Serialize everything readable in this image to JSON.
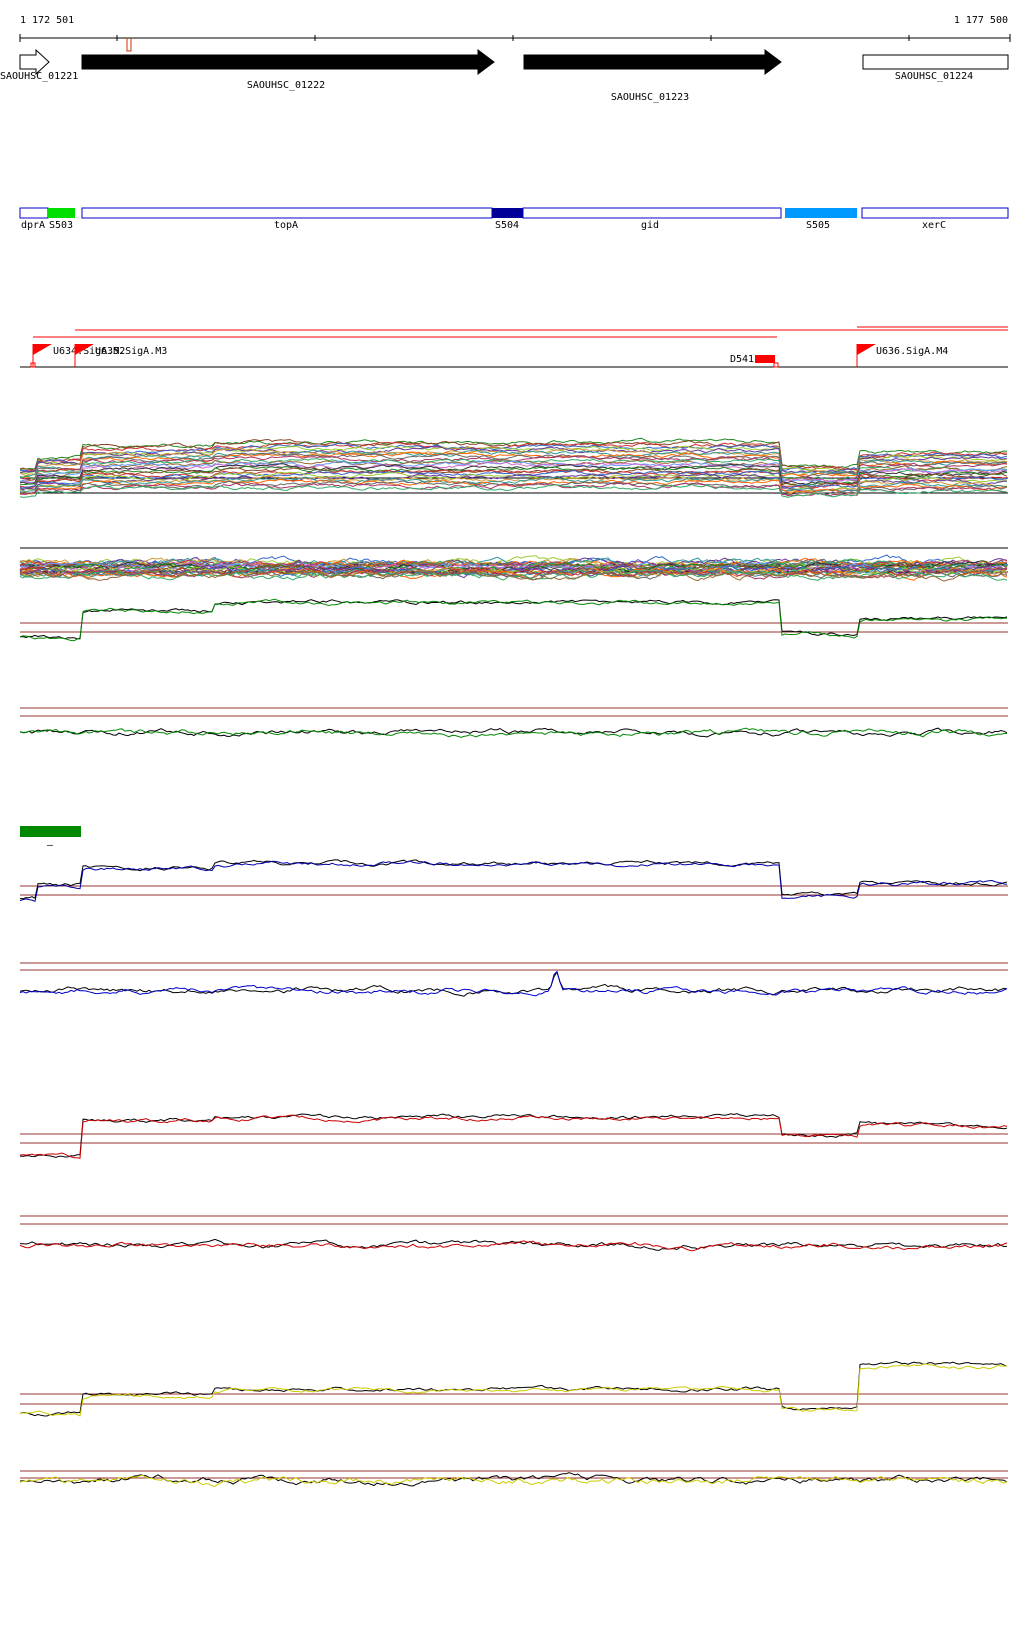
{
  "coordinates": {
    "start": "1 172 501",
    "end": "1 177 500"
  },
  "genes": [
    {
      "id": "SAOUHSC_01221",
      "strand": "+",
      "style": "open"
    },
    {
      "id": "SAOUHSC_01222",
      "strand": "+",
      "style": "filled"
    },
    {
      "id": "SAOUHSC_01223",
      "strand": "+",
      "style": "filled"
    },
    {
      "id": "SAOUHSC_01224",
      "strand": "none",
      "style": "open"
    }
  ],
  "features": [
    {
      "label": "dprA",
      "color": "#ffffff"
    },
    {
      "label": "S503",
      "color": "#00dd00"
    },
    {
      "label": "topA",
      "color": "#ffffff"
    },
    {
      "label": "S504",
      "color": "#000099"
    },
    {
      "label": "gid",
      "color": "#ffffff"
    },
    {
      "label": "S505",
      "color": "#0099ff"
    },
    {
      "label": "xerC",
      "color": "#ffffff"
    }
  ],
  "feature_outline_color": "#0000cc",
  "promoters": [
    {
      "label": "U634.SigA.M2"
    },
    {
      "label": "U635.SigA.M3"
    },
    {
      "label": "D541"
    },
    {
      "label": "U636.SigA.M4"
    }
  ],
  "promoter_color": "#ff0000",
  "tracks": [
    {
      "name": "multi-condition-expression",
      "color": "multi"
    },
    {
      "name": "multi-condition-deviation",
      "color": "multi"
    },
    {
      "name": "expression-green",
      "color": "#008800"
    },
    {
      "name": "deviation-green",
      "color": "#008800"
    },
    {
      "name": "expression-blue",
      "color": "#0000aa"
    },
    {
      "name": "deviation-blue",
      "color": "#0000cc"
    },
    {
      "name": "expression-red",
      "color": "#cc0000"
    },
    {
      "name": "deviation-red",
      "color": "#cc0000"
    },
    {
      "name": "expression-yellow",
      "color": "#cccc00"
    },
    {
      "name": "deviation-yellow",
      "color": "#cccc00"
    }
  ],
  "reference_line_color": "#993333",
  "legend_bar": {
    "label": "–",
    "color": "#008800"
  }
}
